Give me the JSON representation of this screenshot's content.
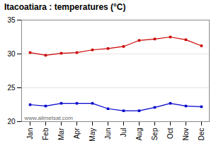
{
  "chart_data": {
    "type": "line",
    "title": "Itacoatiara : temperatures (°C)",
    "categories": [
      "Jan",
      "Feb",
      "Mar",
      "Apr",
      "May",
      "Jun",
      "Jul",
      "Aug",
      "Sep",
      "Oct",
      "Nov",
      "Dec"
    ],
    "series": [
      {
        "color": "#cc0000",
        "values": [
          30.2,
          29.8,
          30.1,
          30.2,
          30.6,
          30.8,
          31.1,
          32.0,
          32.2,
          32.5,
          32.1,
          31.2
        ]
      },
      {
        "color": "#0000cc",
        "values": [
          22.5,
          22.3,
          22.7,
          22.7,
          22.7,
          21.9,
          21.6,
          21.6,
          22.1,
          22.7,
          22.3,
          22.2
        ]
      }
    ],
    "marker": "square",
    "ylim": [
      20,
      35
    ],
    "yticks": [
      20,
      25,
      30,
      35
    ],
    "grid": true,
    "annotations": [
      "www.allmetsat.com"
    ]
  }
}
